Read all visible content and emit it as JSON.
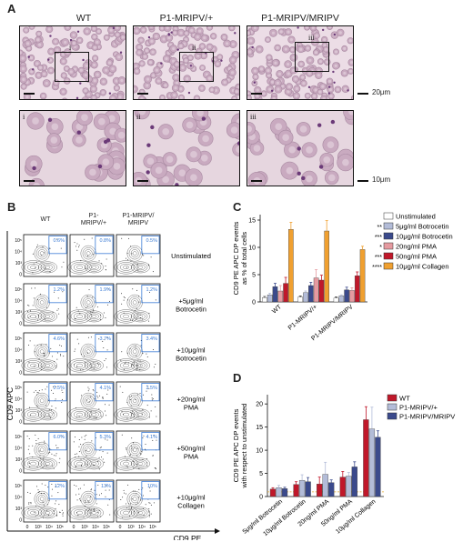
{
  "panels": {
    "A": {
      "letter": "A",
      "genotypes": [
        "WT",
        "P1-MRIPV/+",
        "P1-MRIPV/MRIPV"
      ],
      "inset_labels": [
        "i",
        "ii",
        "iii"
      ],
      "scale_top": "20μm",
      "scale_bottom": "10μm"
    },
    "B": {
      "letter": "B",
      "columns": [
        "WT",
        "P1-\nMRIPV/+",
        "P1-MRIPV/\nMRIPV"
      ],
      "rows": [
        "Unstimulated",
        "+5μg/ml\nBotrocetin",
        "+10μg/ml\nBotrocetin",
        "+20ng/ml\nPMA",
        "+50ng/ml\nPMA",
        "+10μg/ml\nCollagen"
      ],
      "y_axis": "CD9 APC",
      "x_axis": "CD9 PE",
      "y_ticks": [
        "10⁵",
        "10⁴",
        "10³",
        "0"
      ],
      "x_ticks": [
        "0",
        "10³",
        "10⁴",
        "10⁵"
      ],
      "percent_values": [
        [
          "0.6%",
          "0.8%",
          "0.5%"
        ],
        [
          "1.2%",
          "1.9%",
          "1.2%"
        ],
        [
          "4.6%",
          "3.7%",
          "3.4%"
        ],
        [
          "2.5%",
          "4.1%",
          "2.5%"
        ],
        [
          "6.0%",
          "5.3%",
          "4.1%"
        ],
        [
          "12%",
          "13%",
          "10%"
        ]
      ]
    },
    "C": {
      "letter": "C",
      "colors": {
        "unstim": "#ffffff",
        "boto5": "#b3bcd8",
        "boto10": "#3b4a8c",
        "pma20": "#e59aa0",
        "pma50": "#c0182a",
        "collagen": "#f0a030"
      },
      "sig_marks": [
        "**",
        "***",
        "*",
        "***",
        "****"
      ],
      "chart_data": {
        "type": "bar",
        "ylabel": "CD9 PE APC DP events\nas % of total cells",
        "ylim": [
          0,
          16
        ],
        "yticks": [
          0,
          5,
          10,
          15
        ],
        "categories": [
          "WT",
          "P1-MRIPV/+",
          "P1-MRIPV/MRIPV"
        ],
        "legend_position": "top-right",
        "series": [
          {
            "name": "Unstimulated",
            "values": [
              0.8,
              0.9,
              0.7
            ],
            "errors": [
              0.2,
              0.2,
              0.2
            ]
          },
          {
            "name": "5μg/ml Botrocetin",
            "values": [
              1.3,
              1.7,
              1.1
            ],
            "errors": [
              0.3,
              0.3,
              0.2
            ]
          },
          {
            "name": "10μg/ml Botrocetin",
            "values": [
              2.8,
              3.0,
              2.2
            ],
            "errors": [
              0.6,
              0.6,
              0.5
            ]
          },
          {
            "name": "20ng/ml PMA",
            "values": [
              2.0,
              4.4,
              2.1
            ],
            "errors": [
              1.0,
              1.5,
              0.5
            ]
          },
          {
            "name": "50ng/ml PMA",
            "values": [
              3.4,
              4.0,
              4.8
            ],
            "errors": [
              1.1,
              0.9,
              0.7
            ]
          },
          {
            "name": "10μg/ml Collagen",
            "values": [
              13.3,
              13.0,
              9.6
            ],
            "errors": [
              1.3,
              1.9,
              0.6
            ]
          }
        ]
      }
    },
    "D": {
      "letter": "D",
      "colors": {
        "wt": "#c0182a",
        "het": "#b3bcd8",
        "hom": "#3b4a8c"
      },
      "chart_data": {
        "type": "bar",
        "ylabel": "CD9 PE APC DP events\nwith respect to unstimulated",
        "ylim": [
          0,
          22
        ],
        "yticks": [
          0,
          5,
          10,
          15,
          20
        ],
        "categories": [
          "5μg/ml Botrocetin",
          "10μg/ml Botrocetin",
          "20ng/ml PMA",
          "50ng/ml PMA",
          "10μg/ml Collagen"
        ],
        "legend_position": "top-right",
        "reference_line": 1,
        "series": [
          {
            "name": "WT",
            "values": [
              1.6,
              2.6,
              2.7,
              4.2,
              16.6
            ],
            "errors": [
              0.3,
              0.6,
              1.5,
              1.2,
              2.8
            ]
          },
          {
            "name": "P1-MRIPV/+",
            "values": [
              1.9,
              3.5,
              4.8,
              4.4,
              14.6
            ],
            "errors": [
              0.5,
              1.2,
              2.6,
              0.8,
              4.7
            ]
          },
          {
            "name": "P1-MRIPV/MRIPV",
            "values": [
              1.7,
              3.2,
              3.0,
              6.4,
              12.8
            ],
            "errors": [
              0.3,
              0.9,
              0.6,
              1.1,
              1.4
            ]
          }
        ]
      }
    }
  }
}
